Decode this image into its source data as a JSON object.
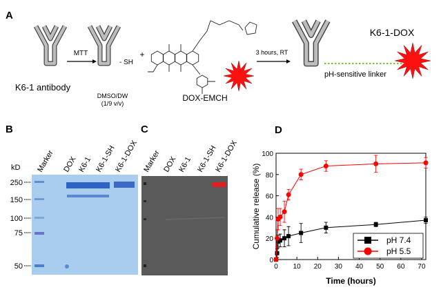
{
  "panel_a": {
    "label": "A",
    "antibody": "K6-1 antibody",
    "reagent": "MTT",
    "thiol": "- SH",
    "plus": "+",
    "solvent": "DMSO/DW",
    "ratio": "(1/9 v/v)",
    "drug": "DOX-EMCH",
    "condition": "3 hours, RT",
    "product": "K6-1-DOX",
    "linker": "pH-sensitive linker"
  },
  "panel_b": {
    "label": "B",
    "unit": "kD",
    "lanes": [
      "Marker",
      "DOX",
      "K6-1",
      "K6-1-SH",
      "K6-1-DOX"
    ],
    "ladder": [
      "250",
      "150",
      "100",
      "75",
      "50"
    ]
  },
  "panel_c": {
    "label": "C",
    "lanes": [
      "Marker",
      "DOX",
      "K6-1",
      "K6-1-SH",
      "K6-1-DOX"
    ]
  },
  "panel_d": {
    "label": "D"
  },
  "chart_data": {
    "type": "line",
    "x_label": "Time (hours)",
    "y_label": "Cumulative release (%)",
    "x": [
      0,
      0.5,
      1,
      2,
      4,
      6,
      12,
      24,
      48,
      72
    ],
    "series": [
      {
        "name": "pH 7.4",
        "color": "#000000",
        "marker": "square",
        "values": [
          0,
          6,
          17,
          18,
          20,
          22,
          25,
          30,
          33,
          37
        ],
        "errors": [
          1,
          4,
          6,
          6,
          8,
          9,
          9,
          5,
          2,
          3
        ]
      },
      {
        "name": "pH 5.5",
        "color": "#ff0000",
        "marker": "circle",
        "values": [
          0,
          20,
          38,
          40,
          45,
          61,
          80,
          88,
          90,
          91
        ],
        "errors": [
          1,
          8,
          10,
          8,
          10,
          5,
          5,
          5,
          8,
          5
        ]
      }
    ],
    "xlim": [
      0,
      72
    ],
    "ylim": [
      0,
      100
    ],
    "xticks": [
      0,
      10,
      20,
      30,
      40,
      50,
      60,
      70
    ],
    "yticks": [
      0,
      20,
      40,
      60,
      80,
      100
    ],
    "legend": "lower right"
  }
}
